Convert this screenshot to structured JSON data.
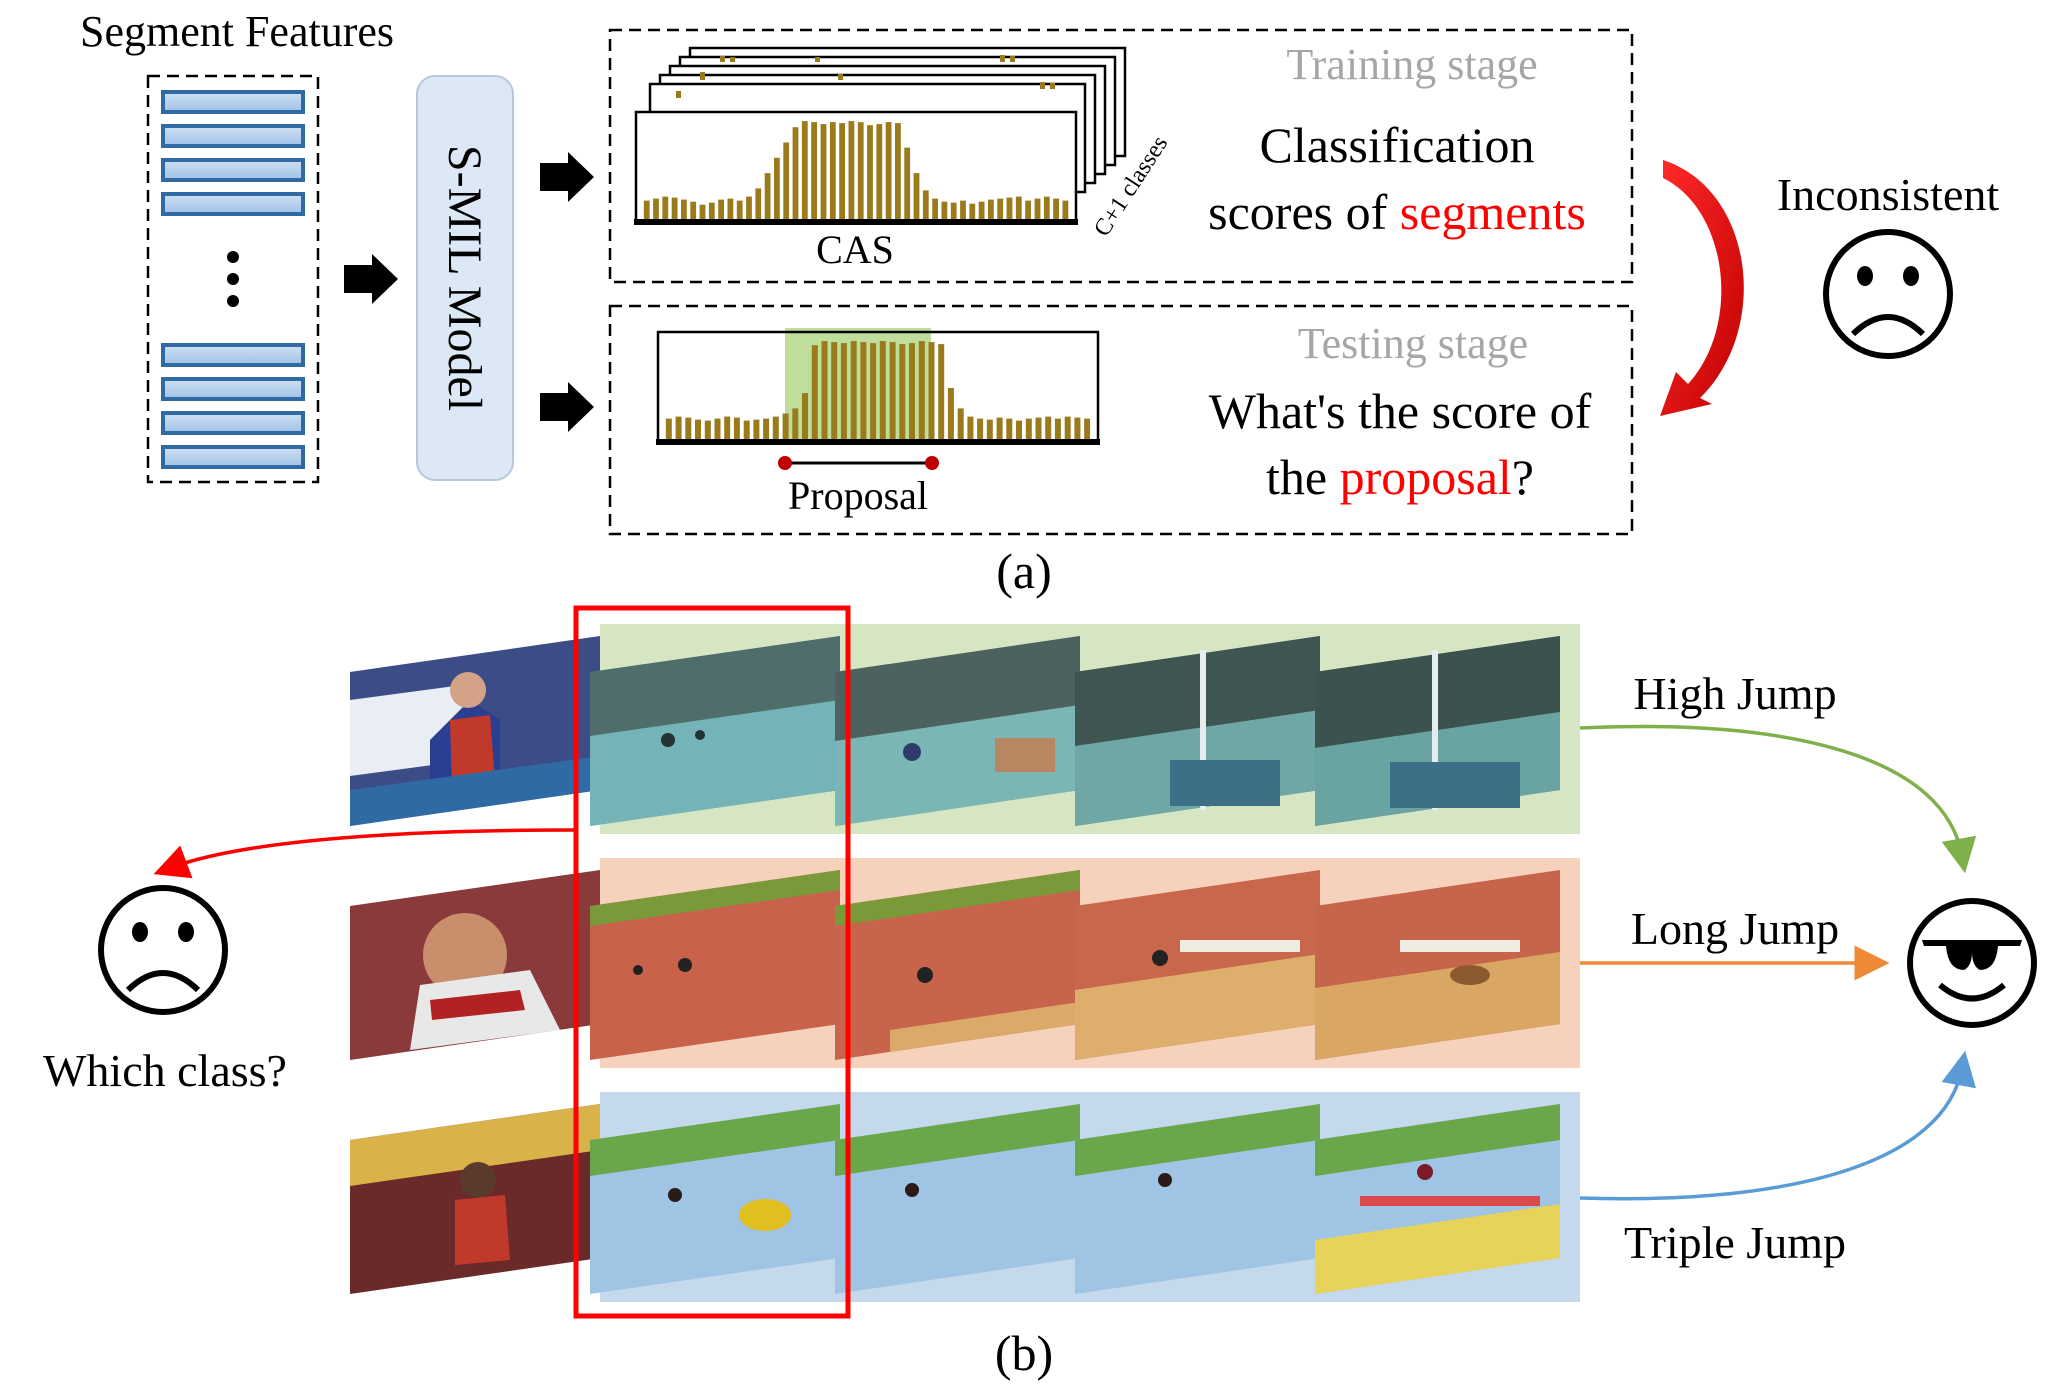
{
  "part_a": {
    "segment_features_label": "Segment Features",
    "model_label": "S-MIL Model",
    "training_stage_label": "Training stage",
    "classification_line1": "Classification",
    "classification_line2_prefix": "scores of ",
    "classification_line2_highlight": "segments",
    "cas_label": "CAS",
    "classes_label": "C+1 classes",
    "testing_stage_label": "Testing stage",
    "question_line1": "What's the score of",
    "question_line2_prefix": "the ",
    "question_line2_highlight": "proposal",
    "question_line2_suffix": "?",
    "proposal_label": "Proposal",
    "inconsistent_label": "Inconsistent",
    "caption": "(a)",
    "cas_bar_values": [
      0.18,
      0.2,
      0.22,
      0.21,
      0.19,
      0.17,
      0.14,
      0.16,
      0.19,
      0.2,
      0.18,
      0.22,
      0.3,
      0.45,
      0.6,
      0.75,
      0.9,
      0.96,
      0.95,
      0.93,
      0.95,
      0.94,
      0.96,
      0.95,
      0.92,
      0.93,
      0.95,
      0.94,
      0.7,
      0.45,
      0.28,
      0.2,
      0.17,
      0.16,
      0.18,
      0.15,
      0.17,
      0.19,
      0.2,
      0.21,
      0.22,
      0.18,
      0.2,
      0.22,
      0.2,
      0.18
    ],
    "proposal_bar_values": [
      0.2,
      0.22,
      0.21,
      0.19,
      0.18,
      0.2,
      0.22,
      0.21,
      0.18,
      0.19,
      0.2,
      0.22,
      0.25,
      0.3,
      0.45,
      0.92,
      0.96,
      0.95,
      0.94,
      0.96,
      0.95,
      0.94,
      0.96,
      0.95,
      0.93,
      0.94,
      0.96,
      0.95,
      0.93,
      0.5,
      0.3,
      0.22,
      0.2,
      0.19,
      0.21,
      0.2,
      0.18,
      0.2,
      0.21,
      0.22,
      0.2,
      0.22,
      0.21,
      0.2
    ]
  },
  "part_b": {
    "rows": [
      {
        "label": "High Jump",
        "color": "#7fb04a",
        "tint": "#d6e5c2"
      },
      {
        "label": "Long Jump",
        "color": "#ee8a35",
        "tint": "#f6d2bd"
      },
      {
        "label": "Triple Jump",
        "color": "#5b9bd5",
        "tint": "#c5d9ec"
      }
    ],
    "which_class_label": "Which class?",
    "caption": "(b)"
  },
  "colors": {
    "bar": "#9b7a1c",
    "highlight_red": "#ff0000",
    "proposal_fill": "#8bc34a",
    "feature_blue": "#2f6aa4",
    "gray_text": "#a6a6a6"
  }
}
